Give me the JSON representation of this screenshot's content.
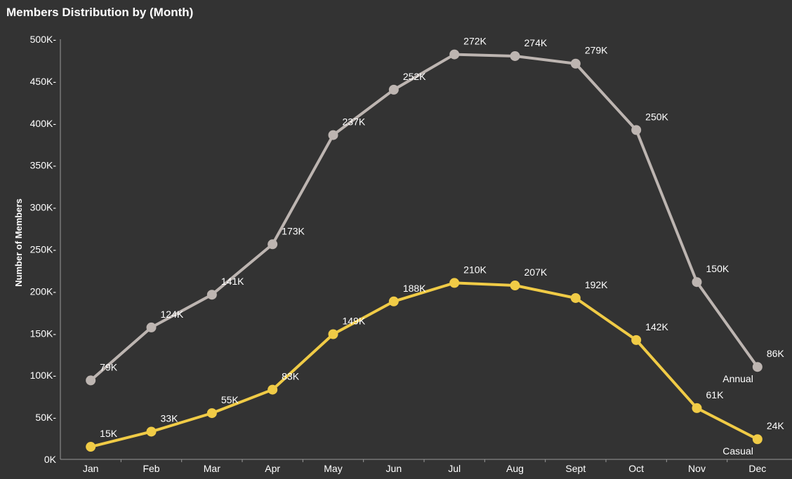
{
  "chart_data": {
    "type": "line",
    "title": "Members Distribution by (Month)",
    "xlabel": "",
    "ylabel": "Number of Members",
    "categories": [
      "Jan",
      "Feb",
      "Mar",
      "Apr",
      "May",
      "Jun",
      "Jul",
      "Aug",
      "Sept",
      "Oct",
      "Nov",
      "Dec"
    ],
    "ylim": [
      0,
      500000
    ],
    "yticks": [
      0,
      50000,
      100000,
      150000,
      200000,
      250000,
      300000,
      350000,
      400000,
      450000,
      500000
    ],
    "ytick_labels": [
      "0K",
      "50K-",
      "100K-",
      "150K-",
      "200K-",
      "250K-",
      "300K-",
      "350K-",
      "400K-",
      "450K-",
      "500K-"
    ],
    "grid": false,
    "series": [
      {
        "name": "Annual",
        "color": "#bdb5b1",
        "values": [
          94000,
          157000,
          196000,
          256000,
          386000,
          440000,
          482000,
          480000,
          471000,
          392000,
          211000,
          110000
        ],
        "labels": [
          "79K",
          "124K",
          "141K",
          "173K",
          "237K",
          "252K",
          "272K",
          "274K",
          "279K",
          "250K",
          "150K",
          "86K"
        ]
      },
      {
        "name": "Casual",
        "color": "#f0cb46",
        "values": [
          15000,
          33000,
          55000,
          83000,
          149000,
          188000,
          210000,
          207000,
          192000,
          142000,
          61000,
          24000
        ],
        "labels": [
          "15K",
          "33K",
          "55K",
          "83K",
          "149K",
          "188K",
          "210K",
          "207K",
          "192K",
          "142K",
          "61K",
          "24K"
        ]
      }
    ]
  }
}
